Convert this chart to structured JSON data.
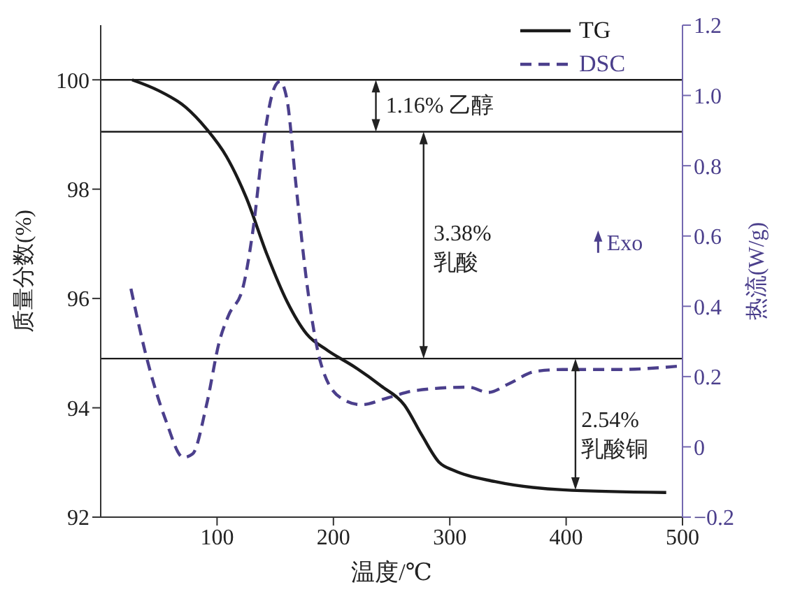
{
  "chart_data": {
    "type": "line",
    "xlabel": "温度/℃",
    "ylabel": "质量分数(%)",
    "y2label": "热流(W/g)",
    "xlim": [
      0,
      500
    ],
    "xticks": [
      100,
      200,
      300,
      400,
      500
    ],
    "ylim": [
      92,
      101
    ],
    "yticks": [
      92,
      94,
      96,
      98,
      100
    ],
    "y2lim": [
      -0.2,
      1.2
    ],
    "y2ticks": [
      {
        "value": -0.2,
        "label": "−0.2"
      },
      0,
      0.2,
      0.4,
      0.6,
      0.8,
      {
        "value": 1,
        "label": "1.0"
      },
      1.2
    ],
    "legend": "top right",
    "marker": "none",
    "series": [
      {
        "name": "TG",
        "color": "#1a1a1a",
        "line_style": "solid",
        "x": [
          27,
          50,
          73,
          91,
          108,
          125,
          143,
          160,
          177,
          195,
          218,
          241,
          261,
          276,
          291,
          304,
          339,
          397,
          486
        ],
        "values": [
          100,
          99.8,
          99.5,
          99.1,
          98.6,
          97.85,
          96.8,
          95.95,
          95.35,
          95.05,
          94.75,
          94.4,
          94.05,
          93.5,
          93.0,
          92.85,
          92.65,
          92.5,
          92.45
        ]
      },
      {
        "name": "DSC",
        "color": "#4b3f8c",
        "line_style": "dashed",
        "axis": "y2",
        "x": [
          26,
          39,
          56,
          71,
          79,
          91,
          102,
          110,
          122,
          131,
          140,
          149,
          154,
          160,
          168,
          177,
          189,
          206,
          224,
          247,
          270,
          316,
          333,
          351,
          374,
          397,
          443,
          498
        ],
        "values": [
          0.45,
          0.26,
          0.075,
          -0.03,
          -0.02,
          0.12,
          0.3,
          0.375,
          0.45,
          0.62,
          0.87,
          1.02,
          1.04,
          0.99,
          0.74,
          0.47,
          0.24,
          0.14,
          0.12,
          0.14,
          0.16,
          0.17,
          0.155,
          0.18,
          0.215,
          0.22,
          0.22,
          0.23
        ]
      }
    ],
    "ref_lines": [
      {
        "axis": "y",
        "value": 100,
        "color": "#1a1a1a"
      },
      {
        "axis": "y",
        "value": 99.05,
        "color": "#1a1a1a"
      },
      {
        "axis": "y",
        "value": 94.9,
        "color": "#1a1a1a"
      }
    ],
    "annotations": [
      "1.16% 乙醇",
      "3.38%\n乳酸",
      {
        "text": "2.54%\n乳酸铜",
        "x": 408,
        "y": 92.5
      },
      "Exo"
    ]
  }
}
